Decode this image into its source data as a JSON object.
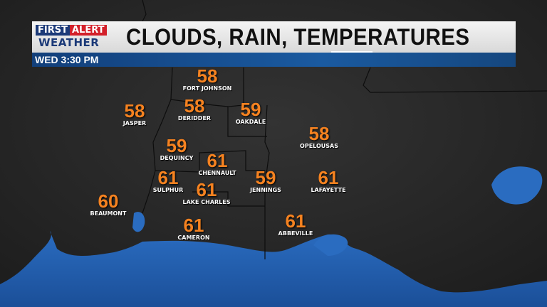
{
  "header": {
    "logo": {
      "line1a": "FIRST",
      "line1b": "ALERT",
      "line2": "WEATHER"
    },
    "title": "CLOUDS, RAIN, TEMPERATURES",
    "time": "WED 3:30 PM"
  },
  "colors": {
    "temp": "#f58220",
    "water": "#1f5fb0",
    "land": "#262626",
    "bar_blue": "#1a5aa0",
    "alert_red": "#d3202a"
  },
  "cities": [
    {
      "name": "FORT JOHNSON",
      "temp": "58"
    },
    {
      "name": "DERIDDER",
      "temp": "58"
    },
    {
      "name": "OAKDALE",
      "temp": "59"
    },
    {
      "name": "JASPER",
      "temp": "58"
    },
    {
      "name": "OPELOUSAS",
      "temp": "58"
    },
    {
      "name": "DEQUINCY",
      "temp": "59"
    },
    {
      "name": "CHENNAULT",
      "temp": "61"
    },
    {
      "name": "SULPHUR",
      "temp": "61"
    },
    {
      "name": "JENNINGS",
      "temp": "59"
    },
    {
      "name": "LAFAYETTE",
      "temp": "61"
    },
    {
      "name": "LAKE CHARLES",
      "temp": "61"
    },
    {
      "name": "BEAUMONT",
      "temp": "60"
    },
    {
      "name": "ABBEVILLE",
      "temp": "61"
    },
    {
      "name": "CAMERON",
      "temp": "61"
    }
  ]
}
